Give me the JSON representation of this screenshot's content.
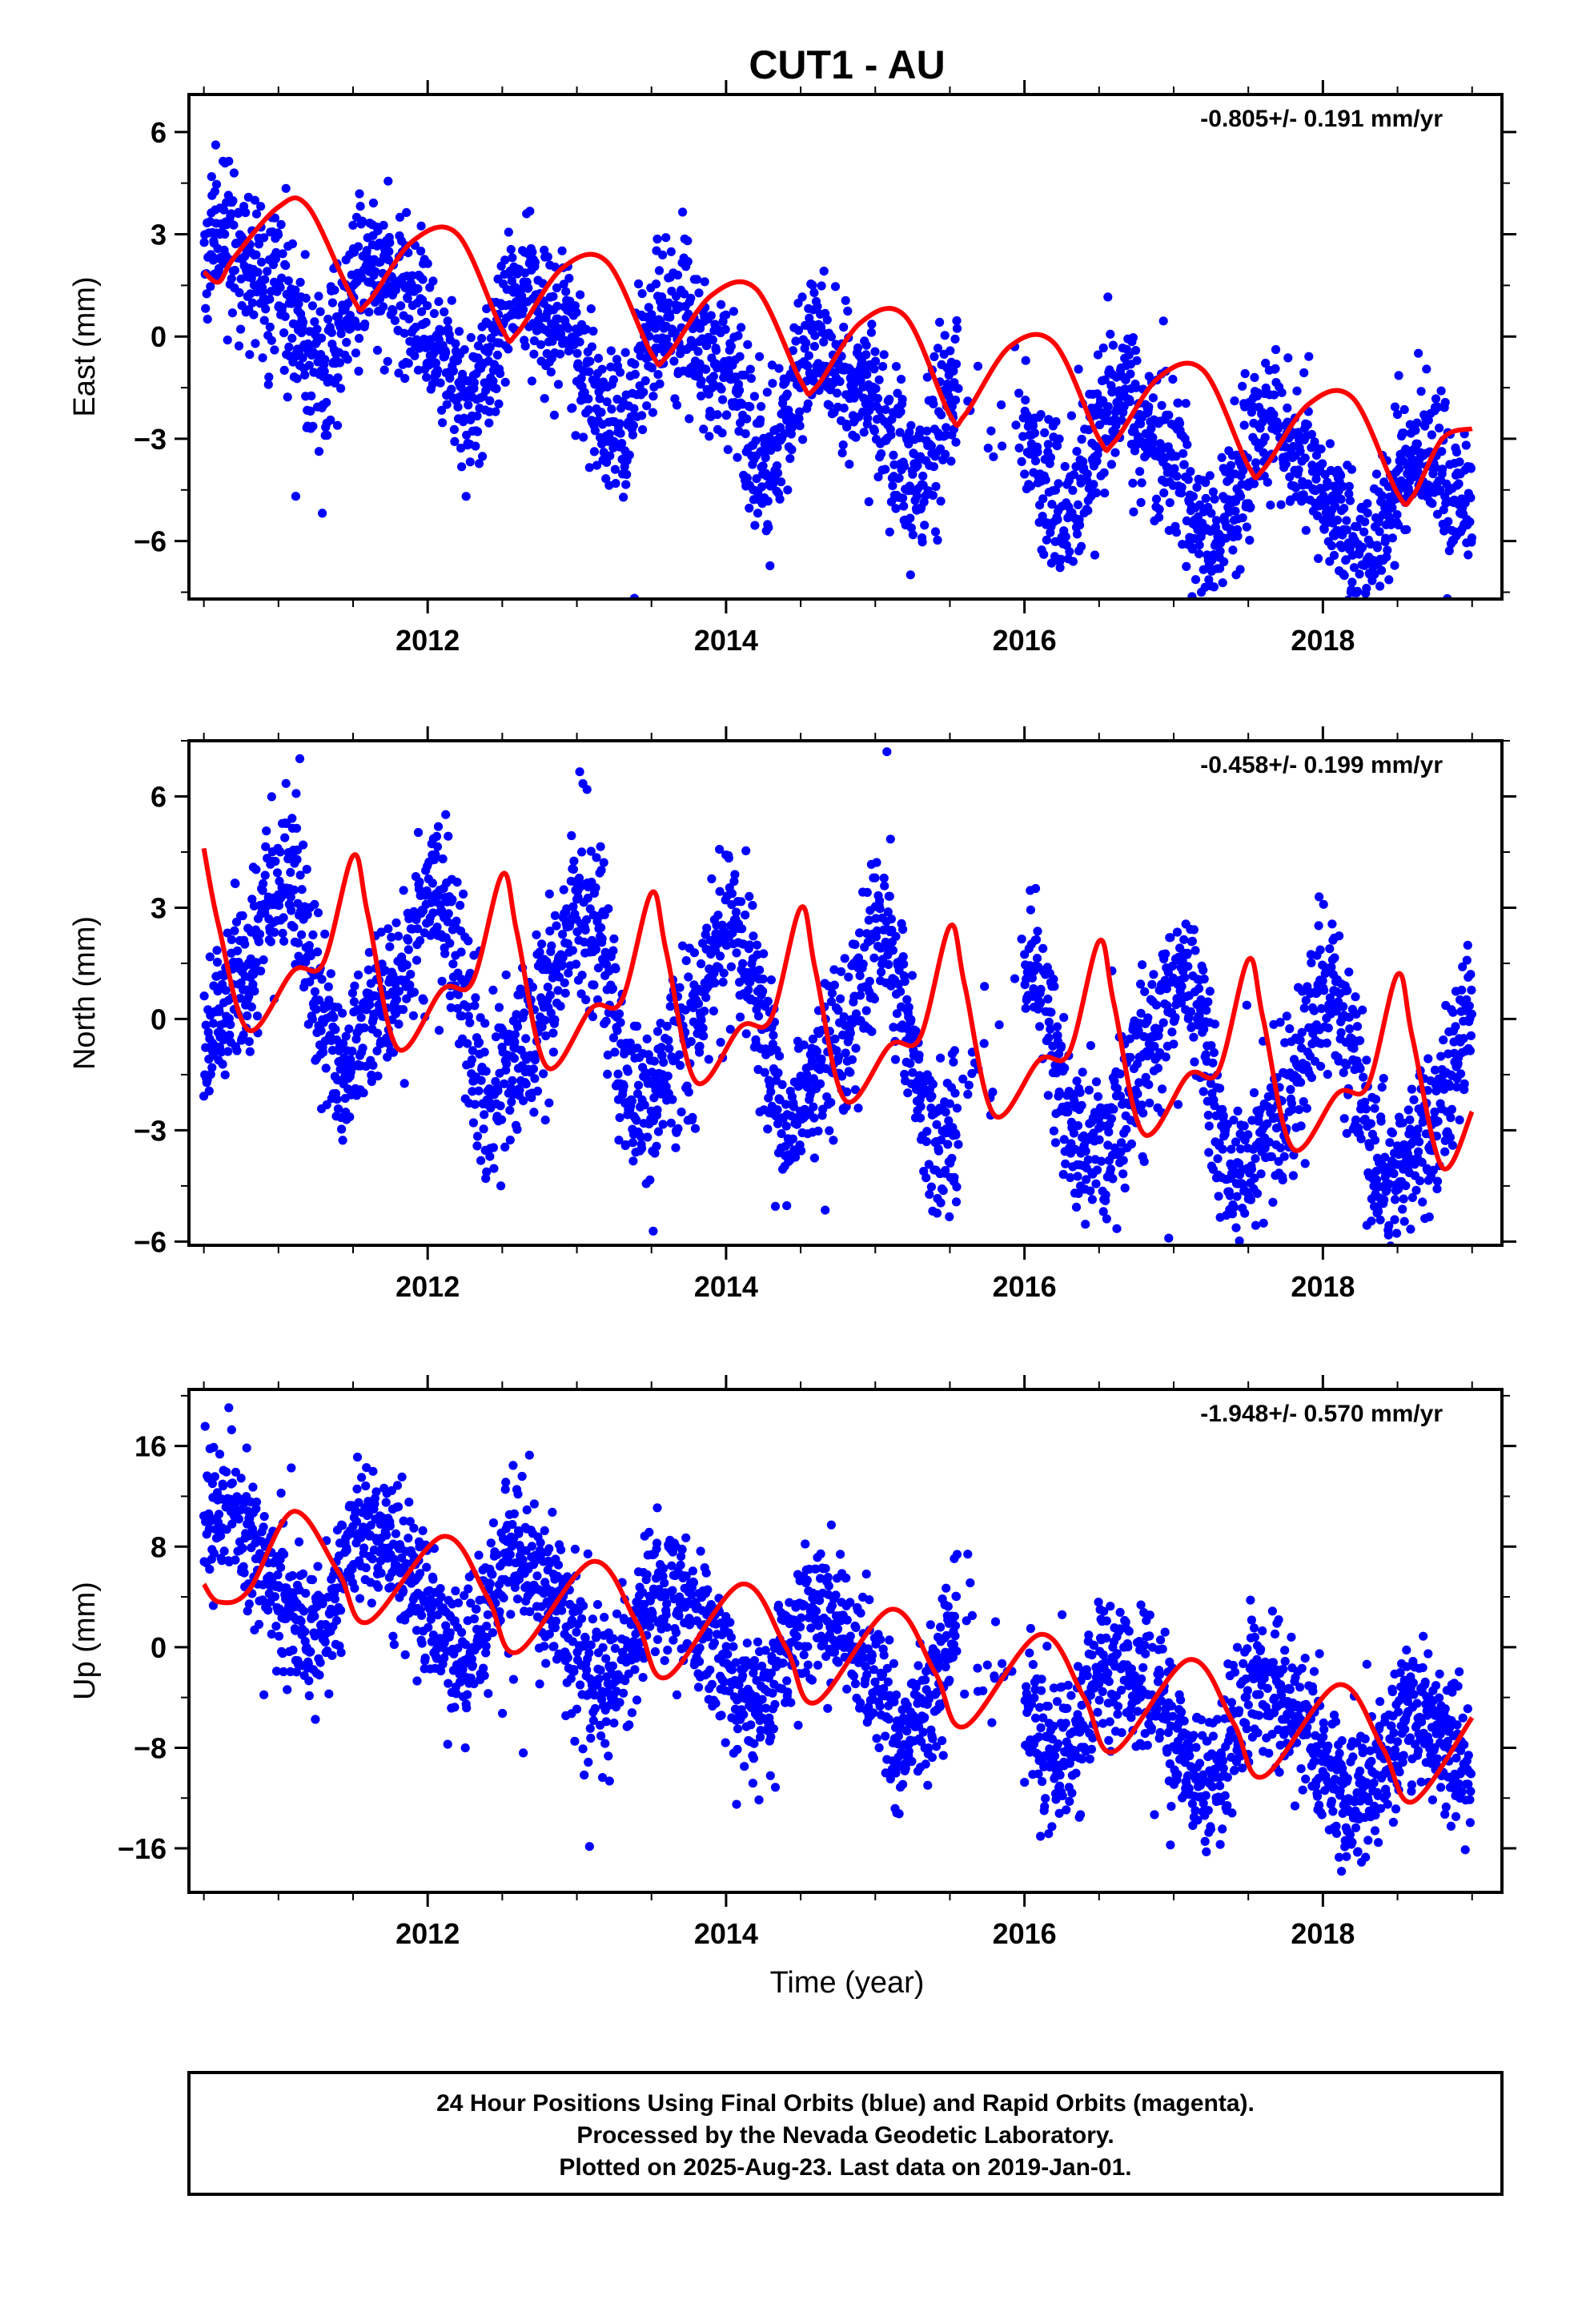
{
  "title": "CUT1 - AU",
  "x_label": "Time (year)",
  "footer": [
    "24 Hour Positions Using Final Orbits (blue) and Rapid Orbits (magenta).",
    "Processed by the Nevada Geodetic Laboratory.",
    "Plotted on 2025-Aug-23. Last data on 2019-Jan-01."
  ],
  "colors": {
    "final_orbits": "#0000ff",
    "fit": "#ff0000",
    "frame": "#000000"
  },
  "chart_data": [
    {
      "type": "scatter",
      "component": "East",
      "ylabel": "East (mm)",
      "rate_label": "-0.805+/- 0.191 mm/yr",
      "xlim": [
        2010.4,
        2019.2
      ],
      "ylim": [
        -7.7,
        7.1
      ],
      "x_ticks": [
        2012,
        2014,
        2016,
        2018
      ],
      "y_ticks": [
        -6,
        -3,
        0,
        3,
        6
      ],
      "series": [
        {
          "role": "points",
          "model": {
            "start": 2010.5,
            "end": 2019.0,
            "trend_mm_per_yr": -0.805,
            "offset": 1.5,
            "annual_amp": 1.6,
            "annual_phase": 0.2,
            "semiannual_amp": 0.5,
            "semiannual_phase": 1.0,
            "scatter_mm": 1.1,
            "gap": [
              2015.55,
              2016.0
            ]
          }
        },
        {
          "role": "fit_curve",
          "x": [
            2010.5,
            2010.6,
            2010.7,
            2011.0,
            2011.2,
            2011.5,
            2011.6,
            2011.9,
            2012.2,
            2012.5,
            2012.6,
            2012.9,
            2013.2,
            2013.5,
            2013.6,
            2013.9,
            2014.2,
            2014.5,
            2014.6,
            2014.9,
            2015.2,
            2015.5,
            2015.6,
            2015.9,
            2016.2,
            2016.5,
            2016.6,
            2016.9,
            2017.2,
            2017.5,
            2017.6,
            2017.9,
            2018.2,
            2018.5,
            2018.6,
            2018.8,
            2019.0
          ],
          "y": [
            1.9,
            1.6,
            2.3,
            3.8,
            3.8,
            1.1,
            1.0,
            2.8,
            3.0,
            0.2,
            0.1,
            2.0,
            2.2,
            -0.5,
            -0.6,
            1.2,
            1.4,
            -1.3,
            -1.5,
            0.4,
            0.6,
            -2.3,
            -2.3,
            -0.3,
            -0.2,
            -3.0,
            -3.1,
            -1.2,
            -1.0,
            -3.8,
            -3.9,
            -2.0,
            -1.8,
            -4.6,
            -4.7,
            -3.0,
            -2.7
          ]
        }
      ]
    },
    {
      "type": "scatter",
      "component": "North",
      "ylabel": "North (mm)",
      "rate_label": "-0.458+/- 0.199 mm/yr",
      "xlim": [
        2010.4,
        2019.2
      ],
      "ylim": [
        -6.1,
        7.5
      ],
      "x_ticks": [
        2012,
        2014,
        2016,
        2018
      ],
      "y_ticks": [
        -6,
        -3,
        0,
        3,
        6
      ],
      "series": [
        {
          "role": "points",
          "model": {
            "start": 2010.5,
            "end": 2019.0,
            "trend_mm_per_yr": -0.458,
            "offset": 1.4,
            "annual_amp": 2.4,
            "annual_phase": 4.7,
            "semiannual_amp": 0.6,
            "semiannual_phase": 0.4,
            "scatter_mm": 1.1,
            "gap": [
              2015.55,
              2016.0
            ]
          }
        },
        {
          "role": "fit_curve",
          "x": [
            2010.5,
            2010.6,
            2010.8,
            2011.1,
            2011.3,
            2011.5,
            2011.6,
            2011.8,
            2012.1,
            2012.3,
            2012.5,
            2012.6,
            2012.8,
            2013.1,
            2013.3,
            2013.5,
            2013.6,
            2013.8,
            2014.1,
            2014.3,
            2014.5,
            2014.6,
            2014.8,
            2015.1,
            2015.3,
            2015.5,
            2015.6,
            2015.8,
            2016.1,
            2016.3,
            2016.5,
            2016.6,
            2016.8,
            2017.1,
            2017.3,
            2017.5,
            2017.6,
            2017.8,
            2018.1,
            2018.3,
            2018.5,
            2018.6,
            2018.8,
            2019.0
          ],
          "y": [
            4.6,
            2.5,
            -0.3,
            1.3,
            1.5,
            4.4,
            2.8,
            -0.8,
            0.8,
            1.0,
            3.9,
            2.3,
            -1.3,
            0.3,
            0.5,
            3.4,
            1.8,
            -1.7,
            -0.2,
            0.0,
            3.0,
            1.3,
            -2.2,
            -0.7,
            -0.5,
            2.5,
            0.9,
            -2.6,
            -1.1,
            -0.9,
            2.1,
            0.4,
            -3.1,
            -1.5,
            -1.4,
            1.6,
            0.0,
            -3.5,
            -2.0,
            -1.8,
            1.2,
            -0.5,
            -4.0,
            -2.5
          ]
        }
      ]
    },
    {
      "type": "scatter",
      "component": "Up",
      "ylabel": "Up (mm)",
      "rate_label": "-1.948+/- 0.570 mm/yr",
      "xlim": [
        2010.4,
        2019.2
      ],
      "ylim": [
        -19.5,
        20.5
      ],
      "x_ticks": [
        2012,
        2014,
        2016,
        2018
      ],
      "y_ticks": [
        -16,
        -8,
        0,
        8,
        16
      ],
      "series": [
        {
          "role": "points",
          "model": {
            "start": 2010.5,
            "end": 2019.0,
            "trend_mm_per_yr": -1.948,
            "offset": 7.0,
            "annual_amp": 4.2,
            "annual_phase": 0.5,
            "semiannual_amp": 0.8,
            "semiannual_phase": 1.6,
            "scatter_mm": 2.9,
            "gap": [
              2015.55,
              2016.0
            ]
          }
        },
        {
          "role": "fit_curve",
          "x": [
            2010.5,
            2010.6,
            2010.8,
            2011.1,
            2011.4,
            2011.6,
            2012.1,
            2012.4,
            2012.6,
            2013.1,
            2013.4,
            2013.6,
            2014.1,
            2014.4,
            2014.6,
            2015.1,
            2015.4,
            2015.6,
            2016.1,
            2016.4,
            2016.6,
            2017.1,
            2017.4,
            2017.6,
            2018.1,
            2018.4,
            2018.6,
            2019.0
          ],
          "y": [
            5.0,
            3.6,
            4.5,
            10.8,
            6.0,
            2.0,
            8.8,
            4.0,
            -0.4,
            6.8,
            2.0,
            -2.4,
            5.0,
            0.0,
            -4.4,
            3.0,
            -2.0,
            -6.3,
            1.0,
            -4.0,
            -8.3,
            -1.0,
            -6.0,
            -10.3,
            -3.0,
            -8.0,
            -12.3,
            -5.6
          ]
        }
      ]
    }
  ]
}
